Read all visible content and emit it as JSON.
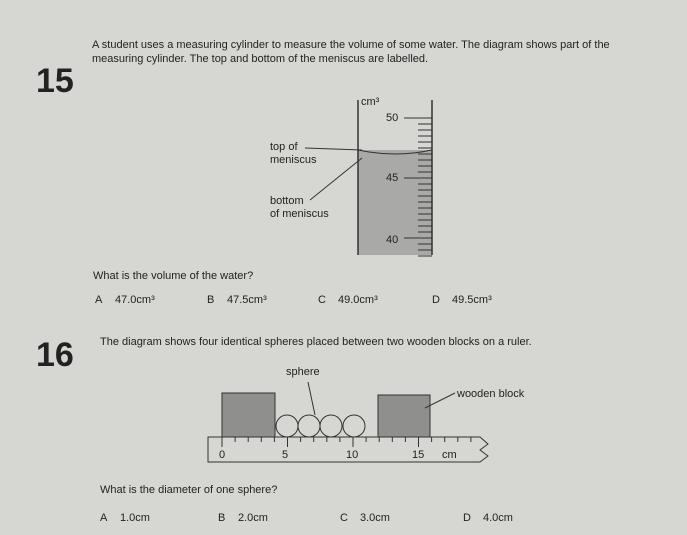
{
  "questions": [
    {
      "number": "15",
      "text": "A student uses a measuring cylinder to measure the volume of some water. The diagram shows part of the measuring cylinder. The top and bottom of the meniscus are labelled.",
      "diagram": {
        "unit": "cm³",
        "scale_labels": [
          "50",
          "45",
          "40"
        ],
        "top_label": [
          "top of",
          "meniscus"
        ],
        "bottom_label": [
          "bottom",
          "of meniscus"
        ]
      },
      "prompt": "What is the volume of the water?",
      "options": [
        {
          "letter": "A",
          "text": "47.0cm³"
        },
        {
          "letter": "B",
          "text": "47.5cm³"
        },
        {
          "letter": "C",
          "text": "49.0cm³"
        },
        {
          "letter": "D",
          "text": "49.5cm³"
        }
      ]
    },
    {
      "number": "16",
      "text": "The diagram shows four identical spheres placed between two wooden blocks on a ruler.",
      "diagram": {
        "sphere_label": "sphere",
        "block_label": "wooden block",
        "ruler_labels": [
          "0",
          "5",
          "10",
          "15"
        ],
        "ruler_unit": "cm"
      },
      "prompt": "What is the diameter of one sphere?",
      "options": [
        {
          "letter": "A",
          "text": "1.0cm"
        },
        {
          "letter": "B",
          "text": "2.0cm"
        },
        {
          "letter": "C",
          "text": "3.0cm"
        },
        {
          "letter": "D",
          "text": "4.0cm"
        }
      ]
    }
  ]
}
